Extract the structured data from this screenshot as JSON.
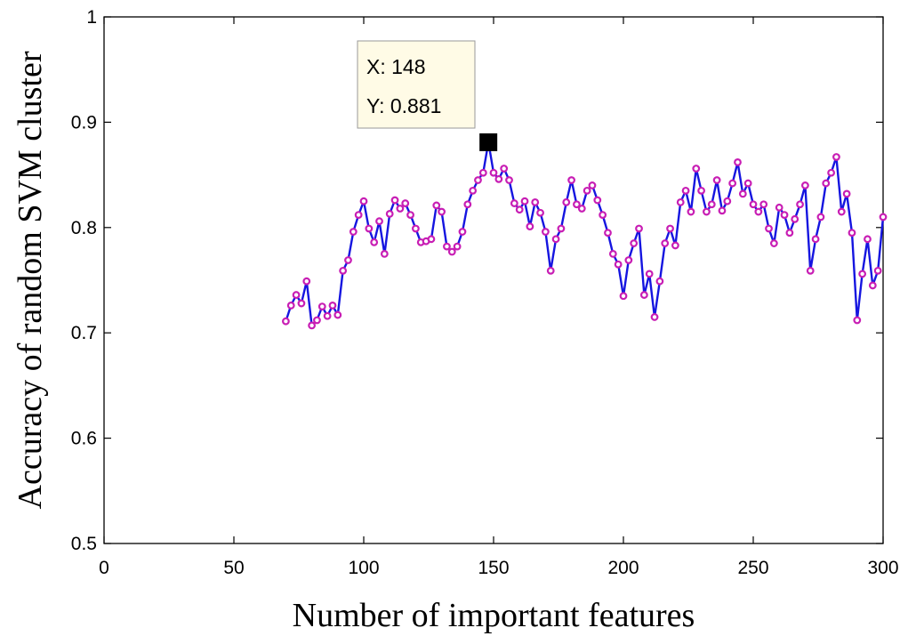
{
  "chart_data": {
    "type": "line",
    "title": "",
    "xlabel": "Number of important features",
    "ylabel": "Accuracy of random SVM cluster",
    "xlim": [
      0,
      300
    ],
    "ylim": [
      0.5,
      1
    ],
    "xticks": [
      0,
      50,
      100,
      150,
      200,
      250,
      300
    ],
    "yticks": [
      0.5,
      0.6,
      0.7,
      0.8,
      0.9,
      1
    ],
    "grid": false,
    "legend": "none",
    "series": [
      {
        "color": "#1515e0",
        "marker_color": "#c81eb4",
        "x": [
          70,
          72,
          74,
          76,
          78,
          80,
          82,
          84,
          86,
          88,
          90,
          92,
          94,
          96,
          98,
          100,
          102,
          104,
          106,
          108,
          110,
          112,
          114,
          116,
          118,
          120,
          122,
          124,
          126,
          128,
          130,
          132,
          134,
          136,
          138,
          140,
          142,
          144,
          146,
          148,
          150,
          152,
          154,
          156,
          158,
          160,
          162,
          164,
          166,
          168,
          170,
          172,
          174,
          176,
          178,
          180,
          182,
          184,
          186,
          188,
          190,
          192,
          194,
          196,
          198,
          200,
          202,
          204,
          206,
          208,
          210,
          212,
          214,
          216,
          218,
          220,
          222,
          224,
          226,
          228,
          230,
          232,
          234,
          236,
          238,
          240,
          242,
          244,
          246,
          248,
          250,
          252,
          254,
          256,
          258,
          260,
          262,
          264,
          266,
          268,
          270,
          272,
          274,
          276,
          278,
          280,
          282,
          284,
          286,
          288,
          290,
          292,
          294,
          296,
          298,
          300
        ],
        "y": [
          0.711,
          0.726,
          0.736,
          0.728,
          0.749,
          0.707,
          0.712,
          0.725,
          0.716,
          0.726,
          0.717,
          0.759,
          0.769,
          0.796,
          0.812,
          0.825,
          0.799,
          0.786,
          0.806,
          0.775,
          0.813,
          0.826,
          0.818,
          0.823,
          0.812,
          0.799,
          0.786,
          0.787,
          0.789,
          0.821,
          0.815,
          0.782,
          0.777,
          0.782,
          0.796,
          0.822,
          0.835,
          0.845,
          0.852,
          0.881,
          0.852,
          0.846,
          0.856,
          0.845,
          0.823,
          0.817,
          0.825,
          0.801,
          0.824,
          0.814,
          0.796,
          0.759,
          0.789,
          0.799,
          0.824,
          0.845,
          0.822,
          0.818,
          0.835,
          0.84,
          0.826,
          0.812,
          0.795,
          0.775,
          0.765,
          0.735,
          0.769,
          0.785,
          0.799,
          0.736,
          0.756,
          0.715,
          0.749,
          0.785,
          0.799,
          0.783,
          0.824,
          0.835,
          0.815,
          0.856,
          0.835,
          0.815,
          0.822,
          0.845,
          0.816,
          0.825,
          0.842,
          0.862,
          0.832,
          0.842,
          0.822,
          0.815,
          0.822,
          0.799,
          0.785,
          0.819,
          0.812,
          0.795,
          0.808,
          0.822,
          0.84,
          0.759,
          0.789,
          0.81,
          0.842,
          0.852,
          0.867,
          0.815,
          0.832,
          0.795,
          0.712,
          0.756,
          0.789,
          0.745,
          0.759,
          0.81
        ]
      }
    ],
    "datatip": {
      "x_text": "X: 148",
      "y_text": "Y: 0.881",
      "x": 148,
      "y": 0.881
    }
  }
}
